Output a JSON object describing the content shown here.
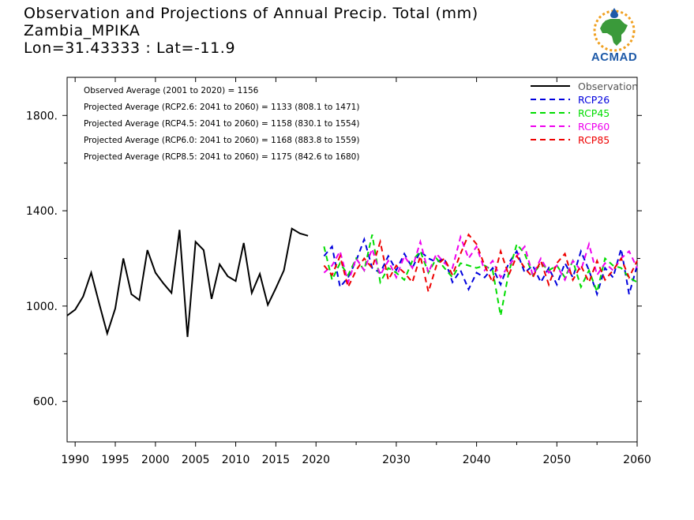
{
  "header": {
    "line1": "Observation and Projections of Annual Precip. Total (mm)",
    "line2": "Zambia_MPIKA",
    "line3": "Lon=31.43333 : Lat=-11.9"
  },
  "logo": {
    "text": "ACMAD",
    "colors": {
      "blue": "#1e5aa8",
      "green": "#3a9a3a",
      "orange": "#f0a020"
    }
  },
  "chart_data": {
    "type": "line",
    "xlim": [
      1989,
      2060
    ],
    "ylim": [
      430,
      1960
    ],
    "x_ticks": [
      {
        "v": 1990,
        "label": "1990"
      },
      {
        "v": 1995,
        "label": "1995"
      },
      {
        "v": 2000,
        "label": "2000"
      },
      {
        "v": 2005,
        "label": "2005"
      },
      {
        "v": 2010,
        "label": "2010"
      },
      {
        "v": 2015,
        "label": "2015"
      },
      {
        "v": 2020,
        "label": "2020"
      },
      {
        "v": 2030,
        "label": "2030"
      },
      {
        "v": 2040,
        "label": "2040"
      },
      {
        "v": 2050,
        "label": "2050"
      },
      {
        "v": 2060,
        "label": "2060"
      }
    ],
    "y_ticks": [
      {
        "v": 600,
        "label": "600."
      },
      {
        "v": 1000,
        "label": "1000."
      },
      {
        "v": 1400,
        "label": "1400."
      },
      {
        "v": 1800,
        "label": "1800."
      }
    ],
    "annotations": [
      "Observed Average (2001 to 2020) = 1156",
      "Projected Average (RCP2.6: 2041 to 2060) = 1133 (808.1 to 1471)",
      "Projected Average (RCP4.5: 2041 to 2060) = 1158 (830.1 to 1554)",
      "Projected Average (RCP6.0: 2041 to 2060) = 1168 (883.8 to 1559)",
      "Projected Average (RCP8.5: 2041 to 2060) = 1175 (842.6 to 1680)"
    ],
    "legend_position": "top-right",
    "series": [
      {
        "name": "Observation",
        "color": "#000000",
        "dash": false,
        "x": [
          1989,
          1990,
          1991,
          1992,
          1993,
          1994,
          1995,
          1996,
          1997,
          1998,
          1999,
          2000,
          2001,
          2002,
          2003,
          2004,
          2005,
          2006,
          2007,
          2008,
          2009,
          2010,
          2011,
          2012,
          2013,
          2014,
          2015,
          2016,
          2017,
          2018,
          2019
        ],
        "y": [
          960,
          985,
          1040,
          1140,
          1010,
          885,
          990,
          1200,
          1050,
          1025,
          1235,
          1140,
          1095,
          1055,
          1320,
          870,
          1270,
          1235,
          1030,
          1175,
          1125,
          1105,
          1265,
          1055,
          1135,
          1005,
          1075,
          1150,
          1325,
          1305,
          1295
        ]
      },
      {
        "name": "RCP26",
        "color": "#0000dd",
        "dash": true,
        "x": [
          2021,
          2022,
          2023,
          2024,
          2025,
          2026,
          2027,
          2028,
          2029,
          2030,
          2031,
          2032,
          2033,
          2034,
          2035,
          2036,
          2037,
          2038,
          2039,
          2040,
          2041,
          2042,
          2043,
          2044,
          2045,
          2046,
          2047,
          2048,
          2049,
          2050,
          2051,
          2052,
          2053,
          2054,
          2055,
          2056,
          2057,
          2058,
          2059,
          2060
        ],
        "y": [
          1210,
          1250,
          1080,
          1120,
          1190,
          1280,
          1160,
          1140,
          1210,
          1150,
          1220,
          1160,
          1230,
          1200,
          1185,
          1200,
          1100,
          1150,
          1070,
          1140,
          1120,
          1160,
          1090,
          1180,
          1230,
          1140,
          1170,
          1100,
          1160,
          1090,
          1180,
          1120,
          1230,
          1150,
          1050,
          1160,
          1120,
          1240,
          1050,
          1170
        ]
      },
      {
        "name": "RCP45",
        "color": "#00dd00",
        "dash": true,
        "x": [
          2021,
          2022,
          2023,
          2024,
          2025,
          2026,
          2027,
          2028,
          2029,
          2030,
          2031,
          2032,
          2033,
          2034,
          2035,
          2036,
          2037,
          2038,
          2039,
          2040,
          2041,
          2042,
          2043,
          2044,
          2045,
          2046,
          2047,
          2048,
          2049,
          2050,
          2051,
          2052,
          2053,
          2054,
          2055,
          2056,
          2057,
          2058,
          2059,
          2060
        ],
        "y": [
          1250,
          1110,
          1180,
          1130,
          1200,
          1150,
          1300,
          1100,
          1160,
          1140,
          1110,
          1190,
          1230,
          1140,
          1200,
          1160,
          1120,
          1180,
          1170,
          1160,
          1170,
          1150,
          960,
          1140,
          1260,
          1220,
          1130,
          1180,
          1150,
          1170,
          1120,
          1190,
          1080,
          1150,
          1060,
          1200,
          1170,
          1160,
          1120,
          1100
        ]
      },
      {
        "name": "RCP60",
        "color": "#ee00ee",
        "dash": true,
        "x": [
          2021,
          2022,
          2023,
          2024,
          2025,
          2026,
          2027,
          2028,
          2029,
          2030,
          2031,
          2032,
          2033,
          2034,
          2035,
          2036,
          2037,
          2038,
          2039,
          2040,
          2041,
          2042,
          2043,
          2044,
          2045,
          2046,
          2047,
          2048,
          2049,
          2050,
          2051,
          2052,
          2053,
          2054,
          2055,
          2056,
          2057,
          2058,
          2059,
          2060
        ],
        "y": [
          1140,
          1170,
          1230,
          1100,
          1200,
          1150,
          1240,
          1130,
          1190,
          1120,
          1210,
          1160,
          1270,
          1140,
          1220,
          1180,
          1160,
          1290,
          1200,
          1250,
          1150,
          1190,
          1120,
          1170,
          1210,
          1250,
          1130,
          1200,
          1140,
          1170,
          1110,
          1190,
          1150,
          1260,
          1130,
          1180,
          1150,
          1200,
          1230,
          1160
        ]
      },
      {
        "name": "RCP85",
        "color": "#ee0000",
        "dash": true,
        "x": [
          2021,
          2022,
          2023,
          2024,
          2025,
          2026,
          2027,
          2028,
          2029,
          2030,
          2031,
          2032,
          2033,
          2034,
          2035,
          2036,
          2037,
          2038,
          2039,
          2040,
          2041,
          2042,
          2043,
          2044,
          2045,
          2046,
          2047,
          2048,
          2049,
          2050,
          2051,
          2052,
          2053,
          2054,
          2055,
          2056,
          2057,
          2058,
          2059,
          2060
        ],
        "y": [
          1170,
          1130,
          1210,
          1080,
          1150,
          1200,
          1160,
          1270,
          1110,
          1170,
          1140,
          1100,
          1210,
          1060,
          1170,
          1200,
          1130,
          1220,
          1300,
          1260,
          1170,
          1100,
          1230,
          1130,
          1210,
          1160,
          1120,
          1190,
          1090,
          1180,
          1220,
          1110,
          1170,
          1100,
          1190,
          1110,
          1150,
          1200,
          1120,
          1190
        ]
      }
    ]
  }
}
